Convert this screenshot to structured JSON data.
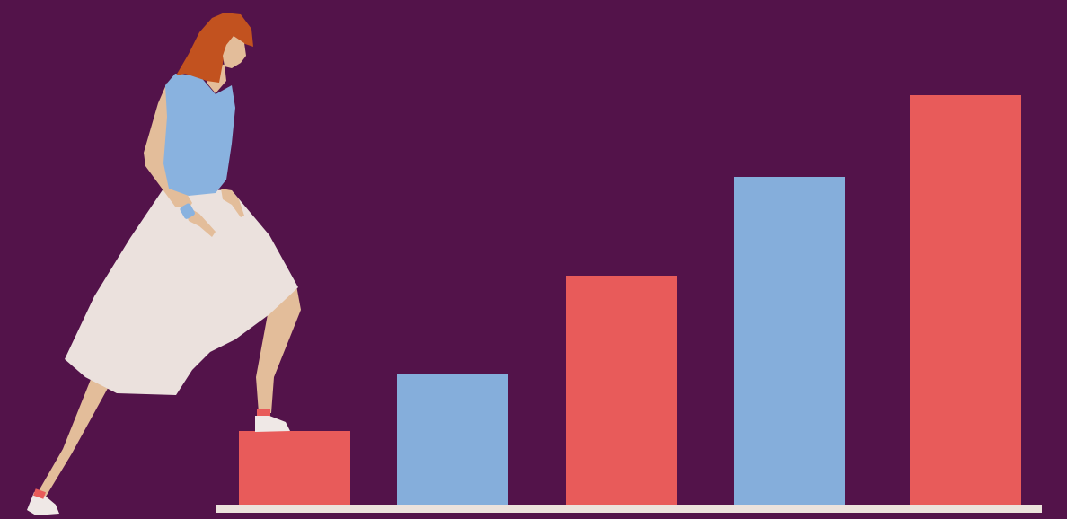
{
  "scene": {
    "description_tag": "woman-climbing-bar-steps",
    "colors": {
      "background": "#53134a",
      "bar_red": "#e85b5a",
      "bar_blue": "#85aedb",
      "baseline": "#ece2dc",
      "skirt": "#ebe1dd",
      "top": "#89b2df",
      "skin": "#e3bd9a",
      "hair": "#c2521f",
      "shoe": "#efe8e6",
      "sock": "#e85b5a"
    },
    "bars": [
      {
        "color": "bar_red",
        "relative_height": 0.18
      },
      {
        "color": "bar_blue",
        "relative_height": 0.32
      },
      {
        "color": "bar_red",
        "relative_height": 0.56
      },
      {
        "color": "bar_blue",
        "relative_height": 0.8
      },
      {
        "color": "bar_red",
        "relative_height": 1.0
      }
    ]
  }
}
